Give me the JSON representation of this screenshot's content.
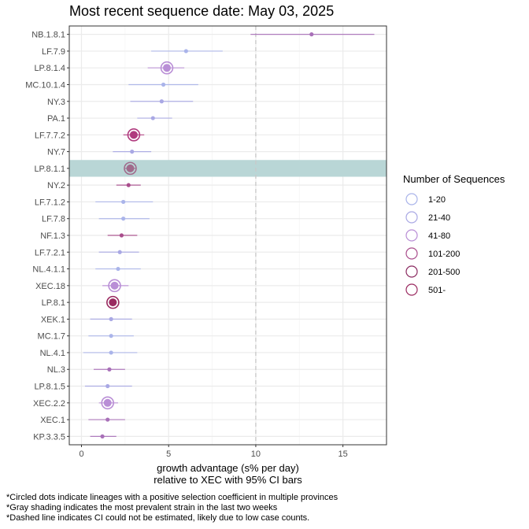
{
  "title": "Most recent sequence date: May 03, 2025",
  "footnotes": [
    "*Circled dots indicate lineages with a positive selection coefficient in multiple provinces",
    "*Gray shading indicates the most prevalent strain in the last two weeks",
    "*Dashed line indicates CI could not be estimated, likely due to low case counts."
  ],
  "colors": {
    "shading": "#b9d6d6",
    "dashed_line": "#c8c8c8",
    "grid_major": "#ebebeb",
    "grid_minor": "#f5f5f5",
    "panel_border": "#333333"
  },
  "chart_data": {
    "type": "scatter",
    "title": "Most recent sequence date: May 03, 2025",
    "xlabel": "growth advantage (s% per day)",
    "xlabel2": "relative to  XEC  with 95% CI bars",
    "xlim": [
      -0.7,
      17.5
    ],
    "xticks": [
      0,
      5,
      10,
      15
    ],
    "dashed_line_x": 10,
    "grid": true,
    "highlighted": "LP.8.1.1",
    "legend": {
      "title": "Number of Sequences",
      "position": "right",
      "entries": [
        {
          "label": "1-20",
          "color": "#aab4ea"
        },
        {
          "label": "21-40",
          "color": "#a9a8e4"
        },
        {
          "label": "41-80",
          "color": "#b98ed6"
        },
        {
          "label": "101-200",
          "color": "#a94d8c"
        },
        {
          "label": "201-500",
          "color": "#8a2a60"
        },
        {
          "label": "501-",
          "color": "#9a2a60"
        }
      ]
    },
    "points": [
      {
        "lineage": "NB.1.8.1",
        "value": 13.2,
        "lo": 9.7,
        "hi": 16.8,
        "color": "#a870b8",
        "circled": false
      },
      {
        "lineage": "LF.7.9",
        "value": 6.0,
        "lo": 4.0,
        "hi": 8.1,
        "color": "#aab4ea",
        "circled": false
      },
      {
        "lineage": "LP.8.1.4",
        "value": 4.9,
        "lo": 3.8,
        "hi": 5.9,
        "color": "#b98ed6",
        "circled": true
      },
      {
        "lineage": "MC.10.1.4",
        "value": 4.7,
        "lo": 2.7,
        "hi": 6.7,
        "color": "#aab4ea",
        "circled": false
      },
      {
        "lineage": "NY.3",
        "value": 4.6,
        "lo": 2.8,
        "hi": 6.4,
        "color": "#a9a8e4",
        "circled": false
      },
      {
        "lineage": "PA.1",
        "value": 4.1,
        "lo": 3.2,
        "hi": 5.2,
        "color": "#a9a8e4",
        "circled": false
      },
      {
        "lineage": "LF.7.7.2",
        "value": 3.0,
        "lo": 2.4,
        "hi": 3.6,
        "color": "#b03a7e",
        "circled": true
      },
      {
        "lineage": "NY.7",
        "value": 2.9,
        "lo": 1.8,
        "hi": 4.0,
        "color": "#a9a8e4",
        "circled": false
      },
      {
        "lineage": "LP.8.1.1",
        "value": 2.8,
        "lo": 2.5,
        "hi": 3.1,
        "color": "#a06b8c",
        "circled": true
      },
      {
        "lineage": "NY.2",
        "value": 2.7,
        "lo": 2.0,
        "hi": 3.4,
        "color": "#a94d8c",
        "circled": false
      },
      {
        "lineage": "LF.7.1.2",
        "value": 2.4,
        "lo": 0.8,
        "hi": 4.1,
        "color": "#aab4ea",
        "circled": false
      },
      {
        "lineage": "LF.7.8",
        "value": 2.4,
        "lo": 1.0,
        "hi": 3.9,
        "color": "#aab4ea",
        "circled": false
      },
      {
        "lineage": "NF.1.3",
        "value": 2.3,
        "lo": 1.5,
        "hi": 3.2,
        "color": "#a94d8c",
        "circled": false
      },
      {
        "lineage": "LF.7.2.1",
        "value": 2.2,
        "lo": 1.0,
        "hi": 3.3,
        "color": "#a9a8e4",
        "circled": false
      },
      {
        "lineage": "NL.4.1.1",
        "value": 2.1,
        "lo": 0.8,
        "hi": 3.4,
        "color": "#aab4ea",
        "circled": false
      },
      {
        "lineage": "XEC.18",
        "value": 1.9,
        "lo": 1.2,
        "hi": 2.7,
        "color": "#b98ed6",
        "circled": true
      },
      {
        "lineage": "LP.8.1",
        "value": 1.8,
        "lo": 1.6,
        "hi": 2.0,
        "color": "#9a2a60",
        "circled": true
      },
      {
        "lineage": "XEK.1",
        "value": 1.7,
        "lo": 0.5,
        "hi": 2.9,
        "color": "#a9a8e4",
        "circled": false
      },
      {
        "lineage": "MC.1.7",
        "value": 1.7,
        "lo": 0.4,
        "hi": 3.0,
        "color": "#aab4ea",
        "circled": false
      },
      {
        "lineage": "NL.4.1",
        "value": 1.7,
        "lo": 0.1,
        "hi": 3.2,
        "color": "#aab4ea",
        "circled": false
      },
      {
        "lineage": "NL.3",
        "value": 1.6,
        "lo": 0.7,
        "hi": 2.5,
        "color": "#a870b8",
        "circled": false
      },
      {
        "lineage": "LP.8.1.5",
        "value": 1.5,
        "lo": 0.2,
        "hi": 2.9,
        "color": "#a9a8e4",
        "circled": false
      },
      {
        "lineage": "XEC.2.2",
        "value": 1.5,
        "lo": 1.0,
        "hi": 2.1,
        "color": "#b98ed6",
        "circled": true
      },
      {
        "lineage": "XEC.1",
        "value": 1.5,
        "lo": 0.4,
        "hi": 2.5,
        "color": "#a870b8",
        "circled": false
      },
      {
        "lineage": "KP.3.3.5",
        "value": 1.2,
        "lo": 0.5,
        "hi": 2.0,
        "color": "#a870b8",
        "circled": false
      }
    ]
  }
}
